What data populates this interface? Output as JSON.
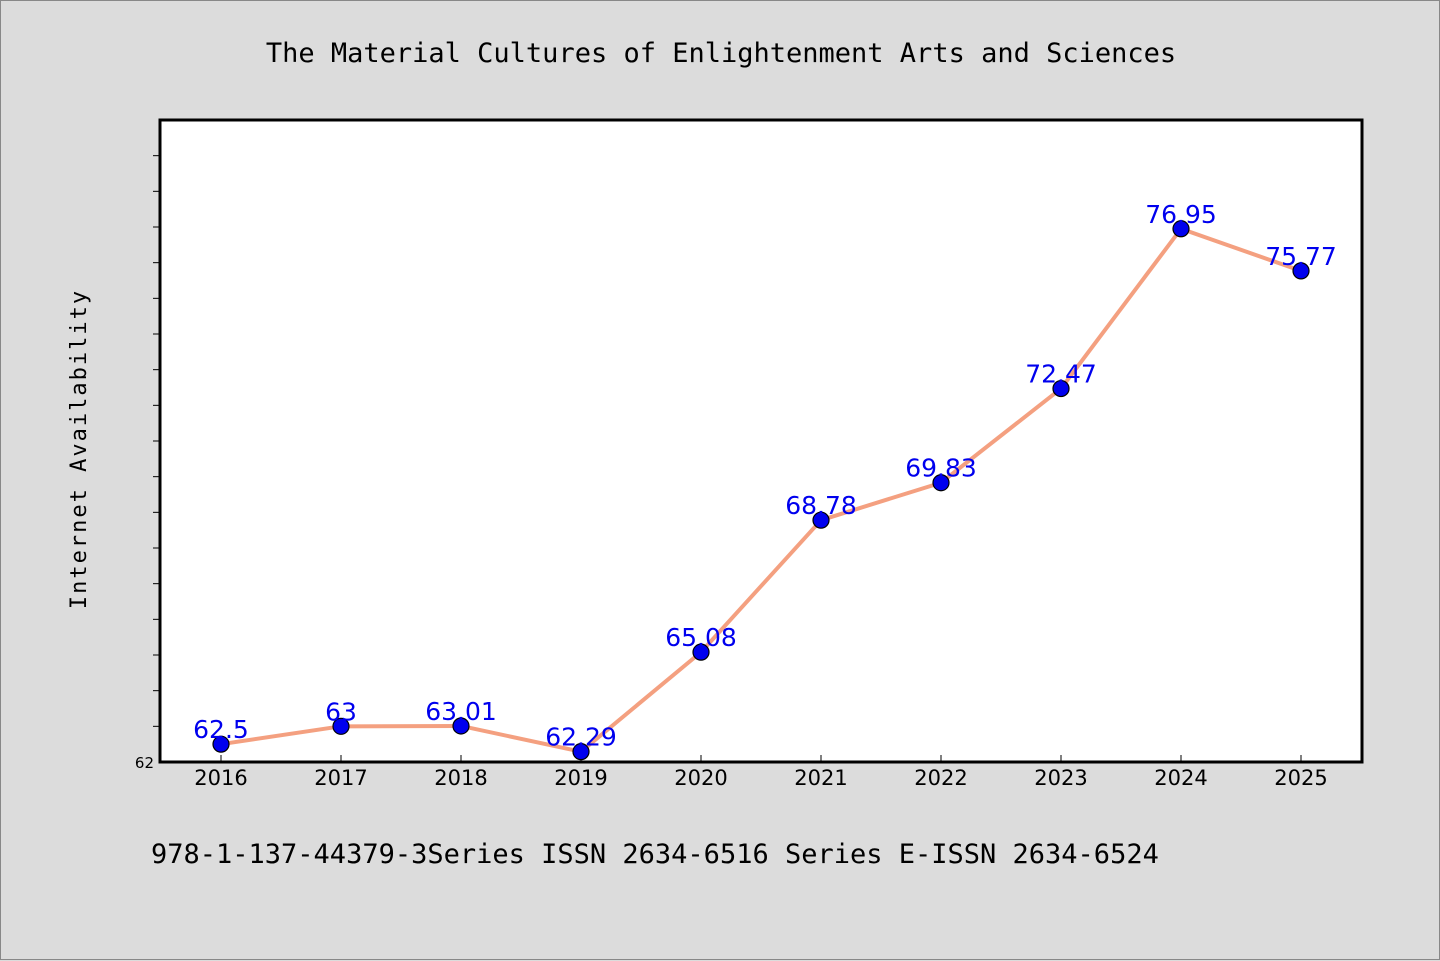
{
  "chart_data": {
    "type": "line",
    "title": "The Material Cultures of Enlightenment Arts and Sciences",
    "xlabel": "",
    "ylabel": "Internet Availability",
    "categories": [
      "2016",
      "2017",
      "2018",
      "2019",
      "2020",
      "2021",
      "2022",
      "2023",
      "2024",
      "2025"
    ],
    "series": [
      {
        "values": [
          62.5,
          63,
          63.01,
          62.29,
          65.08,
          68.78,
          69.83,
          72.47,
          76.95,
          75.77
        ],
        "labels": [
          "62.5",
          "63",
          "63.01",
          "62.29",
          "65.08",
          "68.78",
          "69.83",
          "72.47",
          "76.95",
          "75.77"
        ],
        "line_color": "#f4a080",
        "marker_color": "#0000ee"
      }
    ],
    "ylim": [
      62,
      80
    ],
    "y_tick_labels": [
      {
        "value": 62,
        "label": "62"
      }
    ],
    "grid": false,
    "legend": "none",
    "footer": "978-1-137-44379-3Series ISSN 2634-6516 Series E-ISSN 2634-6524"
  }
}
